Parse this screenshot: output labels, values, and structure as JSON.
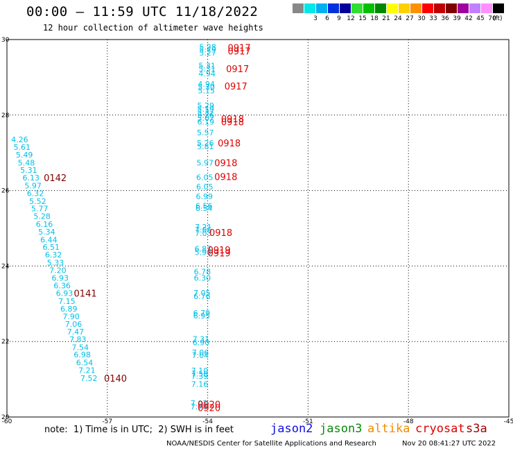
{
  "header": {
    "title": "00:00 — 11:59 UTC 11/18/2022",
    "subtitle": "12 hour collection of altimeter wave heights"
  },
  "legend": {
    "unit": "(ft)",
    "bins": [
      {
        "label": "",
        "color": "#888888"
      },
      {
        "label": "3",
        "color": "#00e8e8"
      },
      {
        "label": "6",
        "color": "#00b0f0"
      },
      {
        "label": "9",
        "color": "#0030e0"
      },
      {
        "label": "12",
        "color": "#00009a"
      },
      {
        "label": "15",
        "color": "#30e030"
      },
      {
        "label": "18",
        "color": "#00c000"
      },
      {
        "label": "21",
        "color": "#008800"
      },
      {
        "label": "24",
        "color": "#ffff00"
      },
      {
        "label": "27",
        "color": "#ffd000"
      },
      {
        "label": "30",
        "color": "#ff9000"
      },
      {
        "label": "33",
        "color": "#ff0000"
      },
      {
        "label": "36",
        "color": "#c00000"
      },
      {
        "label": "39",
        "color": "#800000"
      },
      {
        "label": "42",
        "color": "#a000a0"
      },
      {
        "label": "45",
        "color": "#c080ff"
      },
      {
        "label": "70",
        "color": "#ff90ff"
      },
      {
        "label": "",
        "color": "#000000"
      }
    ]
  },
  "map": {
    "lon_range": [
      -60,
      -45
    ],
    "lat_range": [
      20,
      30
    ],
    "x_ticks": [
      "-60",
      "-57",
      "-54",
      "-51",
      "-48",
      "-45"
    ],
    "y_ticks": [
      "20",
      "22",
      "24",
      "26",
      "28",
      "30"
    ]
  },
  "tracks": [
    {
      "color": "#00c0e8",
      "label_color": "#800000",
      "points": [
        {
          "v": "4.26",
          "lon": -59.62,
          "lat": 27.35
        },
        {
          "v": "5.61",
          "lon": -59.55,
          "lat": 27.15
        },
        {
          "v": "5.49",
          "lon": -59.48,
          "lat": 26.95
        },
        {
          "v": "5.48",
          "lon": -59.42,
          "lat": 26.74
        },
        {
          "v": "5.31",
          "lon": -59.35,
          "lat": 26.54
        },
        {
          "v": "6.13",
          "lon": -59.28,
          "lat": 26.34
        },
        {
          "v": "5.97",
          "lon": -59.22,
          "lat": 26.13
        },
        {
          "v": "6.32",
          "lon": -59.15,
          "lat": 25.93
        },
        {
          "v": "5.52",
          "lon": -59.08,
          "lat": 25.72
        },
        {
          "v": "5.77",
          "lon": -59.02,
          "lat": 25.52
        },
        {
          "v": "5.28",
          "lon": -58.95,
          "lat": 25.32
        },
        {
          "v": "6.16",
          "lon": -58.88,
          "lat": 25.11
        },
        {
          "v": "5.34",
          "lon": -58.81,
          "lat": 24.91
        },
        {
          "v": "6.44",
          "lon": -58.75,
          "lat": 24.7
        },
        {
          "v": "6.51",
          "lon": -58.68,
          "lat": 24.5
        },
        {
          "v": "6.32",
          "lon": -58.61,
          "lat": 24.3
        },
        {
          "v": "5.33",
          "lon": -58.55,
          "lat": 24.09
        },
        {
          "v": "7.20",
          "lon": -58.48,
          "lat": 23.89
        },
        {
          "v": "6.93",
          "lon": -58.41,
          "lat": 23.69
        },
        {
          "v": "6.36",
          "lon": -58.35,
          "lat": 23.48
        },
        {
          "v": "6.93",
          "lon": -58.28,
          "lat": 23.28
        },
        {
          "v": "7.15",
          "lon": -58.21,
          "lat": 23.07
        },
        {
          "v": "6.89",
          "lon": -58.15,
          "lat": 22.87
        },
        {
          "v": "7.90",
          "lon": -58.08,
          "lat": 22.67
        },
        {
          "v": "7.06",
          "lon": -58.01,
          "lat": 22.46
        },
        {
          "v": "7.47",
          "lon": -57.95,
          "lat": 22.26
        },
        {
          "v": "7.83",
          "lon": -57.88,
          "lat": 22.06
        },
        {
          "v": "7.54",
          "lon": -57.81,
          "lat": 21.85
        },
        {
          "v": "6.98",
          "lon": -57.75,
          "lat": 21.65
        },
        {
          "v": "6.54",
          "lon": -57.68,
          "lat": 21.44
        },
        {
          "v": "7.21",
          "lon": -57.61,
          "lat": 21.24
        },
        {
          "v": "7.52",
          "lon": -57.55,
          "lat": 21.03
        }
      ],
      "time_labels": [
        {
          "t": "0142",
          "lon": -58.9,
          "lat": 26.34
        },
        {
          "t": "0141",
          "lon": -58.0,
          "lat": 23.28
        },
        {
          "t": "0140",
          "lon": -57.1,
          "lat": 21.03
        }
      ]
    },
    {
      "color": "#00c0e8",
      "label_color": "#e00000",
      "points": [
        {
          "v": "5.28",
          "lon": -54.0,
          "lat": 29.81
        },
        {
          "v": "5.79",
          "lon": -54.0,
          "lat": 29.73
        },
        {
          "v": "5.27",
          "lon": -54.0,
          "lat": 29.65
        },
        {
          "v": "5.31",
          "lon": -54.02,
          "lat": 29.31
        },
        {
          "v": "5.31",
          "lon": -54.02,
          "lat": 29.23
        },
        {
          "v": "4.94",
          "lon": -54.02,
          "lat": 29.1
        },
        {
          "v": "4.94",
          "lon": -54.04,
          "lat": 28.82
        },
        {
          "v": "5.30",
          "lon": -54.04,
          "lat": 28.74
        },
        {
          "v": "5.15",
          "lon": -54.04,
          "lat": 28.65
        },
        {
          "v": "5.29",
          "lon": -54.06,
          "lat": 28.25
        },
        {
          "v": "5.19",
          "lon": -54.06,
          "lat": 28.16
        },
        {
          "v": "5.37",
          "lon": -54.06,
          "lat": 28.08
        },
        {
          "v": "5.26",
          "lon": -54.06,
          "lat": 28.0
        },
        {
          "v": "5.07",
          "lon": -54.06,
          "lat": 27.92
        },
        {
          "v": "6.19",
          "lon": -54.06,
          "lat": 27.82
        },
        {
          "v": "5.57",
          "lon": -54.07,
          "lat": 27.54
        },
        {
          "v": "5.26",
          "lon": -54.07,
          "lat": 27.26
        },
        {
          "v": "5.81",
          "lon": -54.07,
          "lat": 27.17
        },
        {
          "v": "5.97",
          "lon": -54.08,
          "lat": 26.74
        },
        {
          "v": "6.05",
          "lon": -54.09,
          "lat": 26.35
        },
        {
          "v": "6.05",
          "lon": -54.09,
          "lat": 26.1
        },
        {
          "v": "6.99",
          "lon": -54.1,
          "lat": 25.85
        },
        {
          "v": "6.56",
          "lon": -54.11,
          "lat": 25.6
        },
        {
          "v": "6.54",
          "lon": -54.11,
          "lat": 25.53
        },
        {
          "v": "7.21",
          "lon": -54.13,
          "lat": 25.04
        },
        {
          "v": "7.06",
          "lon": -54.13,
          "lat": 24.96
        },
        {
          "v": "7.03",
          "lon": -54.13,
          "lat": 24.87
        },
        {
          "v": "6.87",
          "lon": -54.14,
          "lat": 24.46
        },
        {
          "v": "5.90",
          "lon": -54.14,
          "lat": 24.37
        },
        {
          "v": "6.78",
          "lon": -54.16,
          "lat": 23.85
        },
        {
          "v": "6.30",
          "lon": -54.16,
          "lat": 23.69
        },
        {
          "v": "7.05",
          "lon": -54.17,
          "lat": 23.29
        },
        {
          "v": "6.76",
          "lon": -54.17,
          "lat": 23.2
        },
        {
          "v": "6.79",
          "lon": -54.18,
          "lat": 22.76
        },
        {
          "v": "6.95",
          "lon": -54.18,
          "lat": 22.68
        },
        {
          "v": "7.31",
          "lon": -54.2,
          "lat": 22.07
        },
        {
          "v": "6.90",
          "lon": -54.2,
          "lat": 21.98
        },
        {
          "v": "7.06",
          "lon": -54.22,
          "lat": 21.71
        },
        {
          "v": "7.04",
          "lon": -54.22,
          "lat": 21.64
        },
        {
          "v": "7.10",
          "lon": -54.24,
          "lat": 21.23
        },
        {
          "v": "7.50",
          "lon": -54.24,
          "lat": 21.15
        },
        {
          "v": "7.39",
          "lon": -54.24,
          "lat": 21.08
        },
        {
          "v": "7.16",
          "lon": -54.24,
          "lat": 20.87
        },
        {
          "v": "7.03",
          "lon": -54.26,
          "lat": 20.37
        },
        {
          "v": "7.78",
          "lon": -54.26,
          "lat": 20.28
        }
      ],
      "time_labels": [
        {
          "t": "0917",
          "lon": -53.4,
          "lat": 29.79
        },
        {
          "t": "0917",
          "lon": -53.4,
          "lat": 29.7
        },
        {
          "t": "0917",
          "lon": -53.45,
          "lat": 29.23
        },
        {
          "t": "0917",
          "lon": -53.5,
          "lat": 28.77
        },
        {
          "t": "0918",
          "lon": -53.6,
          "lat": 27.9
        },
        {
          "t": "0918",
          "lon": -53.6,
          "lat": 27.82
        },
        {
          "t": "0918",
          "lon": -53.7,
          "lat": 27.26
        },
        {
          "t": "0918",
          "lon": -53.8,
          "lat": 26.74
        },
        {
          "t": "0918",
          "lon": -53.8,
          "lat": 26.37
        },
        {
          "t": "0918",
          "lon": -53.95,
          "lat": 24.89
        },
        {
          "t": "0919",
          "lon": -54.0,
          "lat": 24.43
        },
        {
          "t": "0919",
          "lon": -54.0,
          "lat": 24.35
        },
        {
          "t": "0920",
          "lon": -54.3,
          "lat": 20.34
        },
        {
          "t": "0920",
          "lon": -54.3,
          "lat": 20.25
        }
      ]
    }
  ],
  "footer": {
    "note": "note:  1) Time is in UTC;  2) SWH is in feet",
    "satellites": {
      "jason2": "jason2",
      "jason3": "jason3",
      "altika": "altika",
      "cryosat": "cryosat",
      "s3a": "s3a"
    },
    "credit": "NOAA/NESDIS Center for Satellite Applications and Research",
    "timestamp": "Nov 20 08:41:27 UTC 2022"
  }
}
